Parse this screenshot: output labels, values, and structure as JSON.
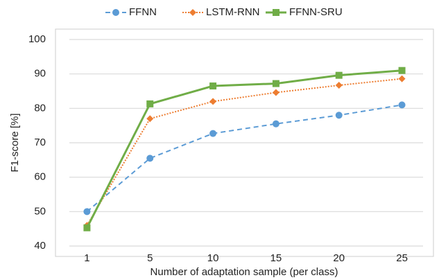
{
  "chart_data": {
    "type": "line",
    "xlabel": "Number of adaptation sample (per class)",
    "ylabel": "F1-score [%]",
    "categories": [
      "1",
      "5",
      "10",
      "15",
      "20",
      "25"
    ],
    "series": [
      {
        "name": "FFNN",
        "color": "#5b9bd5",
        "marker": "circle",
        "line_style": "dashed",
        "values": [
          50,
          65.5,
          72.7,
          75.5,
          78,
          81
        ]
      },
      {
        "name": "LSTM-RNN",
        "color": "#ed7d31",
        "marker": "diamond",
        "line_style": "dotted",
        "values": [
          46,
          77,
          82,
          84.6,
          86.7,
          88.6
        ]
      },
      {
        "name": "FFNN-SRU",
        "color": "#70ad47",
        "marker": "square",
        "line_style": "solid",
        "values": [
          45.3,
          81.3,
          86.5,
          87.2,
          89.6,
          91
        ]
      }
    ],
    "ylim": [
      40,
      100
    ],
    "yticks": [
      40,
      50,
      60,
      70,
      80,
      90,
      100
    ],
    "grid": true,
    "legend": "top"
  }
}
